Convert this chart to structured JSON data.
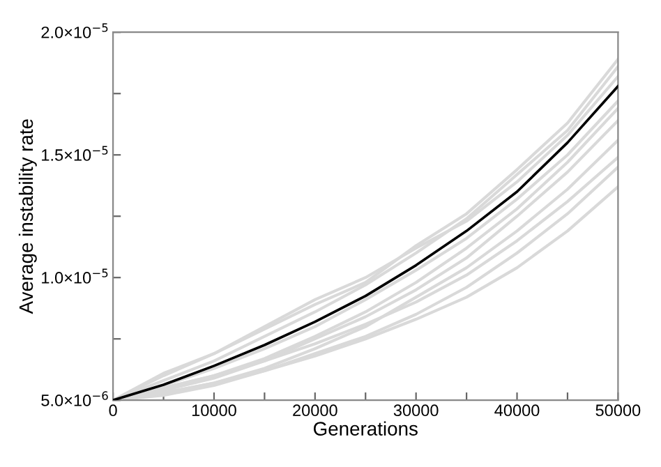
{
  "chart_data": {
    "type": "line",
    "xlabel": "Generations",
    "ylabel": "Average instability rate",
    "x": [
      0,
      5000,
      10000,
      15000,
      20000,
      25000,
      30000,
      35000,
      40000,
      45000,
      50000
    ],
    "series": [
      {
        "color": "#d9d9d9",
        "values": [
          5e-06,
          6.1e-06,
          6.9e-06,
          7.9e-06,
          8.9e-06,
          9.8e-06,
          1.13e-05,
          1.26e-05,
          1.44e-05,
          1.63e-05,
          1.89e-05
        ]
      },
      {
        "color": "#d9d9d9",
        "values": [
          5e-06,
          5.8e-06,
          6.6e-06,
          7.6e-06,
          8.6e-06,
          9.7e-06,
          1.1e-05,
          1.24e-05,
          1.42e-05,
          1.6e-05,
          1.86e-05
        ]
      },
      {
        "color": "#d9d9d9",
        "values": [
          5e-06,
          6e-06,
          6.9e-06,
          8e-06,
          9.1e-06,
          1e-05,
          1.12e-05,
          1.23e-05,
          1.39e-05,
          1.58e-05,
          1.82e-05
        ]
      },
      {
        "color": "#d9d9d9",
        "values": [
          5e-06,
          5.6e-06,
          6.3e-06,
          7.1e-06,
          8e-06,
          9.1e-06,
          1.03e-05,
          1.16e-05,
          1.32e-05,
          1.5e-05,
          1.72e-05
        ]
      },
      {
        "color": "#d9d9d9",
        "values": [
          5e-06,
          5.5e-06,
          6e-06,
          6.7e-06,
          7.6e-06,
          8.6e-06,
          9.8e-06,
          1.12e-05,
          1.28e-05,
          1.47e-05,
          1.69e-05
        ]
      },
      {
        "color": "#d9d9d9",
        "values": [
          5e-06,
          5.4e-06,
          5.9e-06,
          6.6e-06,
          7.5e-06,
          8.4e-06,
          9.5e-06,
          1.08e-05,
          1.25e-05,
          1.43e-05,
          1.64e-05
        ]
      },
      {
        "color": "#d9d9d9",
        "values": [
          5e-06,
          5.3e-06,
          5.7e-06,
          6.3e-06,
          7.1e-06,
          8e-06,
          9.2e-06,
          1.04e-05,
          1.19e-05,
          1.36e-05,
          1.56e-05
        ]
      },
      {
        "color": "#d9d9d9",
        "values": [
          5e-06,
          5.5e-06,
          6e-06,
          6.6e-06,
          7.3e-06,
          8.1e-06,
          9e-06,
          1.01e-05,
          1.15e-05,
          1.31e-05,
          1.49e-05
        ]
      },
      {
        "color": "#d9d9d9",
        "values": [
          5e-06,
          5.2e-06,
          5.6e-06,
          6.2e-06,
          6.9e-06,
          7.6e-06,
          8.5e-06,
          9.6e-06,
          1.1e-05,
          1.26e-05,
          1.45e-05
        ]
      },
      {
        "color": "#d9d9d9",
        "values": [
          5e-06,
          5.3e-06,
          5.7e-06,
          6.2e-06,
          6.8e-06,
          7.5e-06,
          8.3e-06,
          9.2e-06,
          1.04e-05,
          1.19e-05,
          1.37e-05
        ]
      },
      {
        "color": "#000000",
        "values": [
          5e-06,
          5.63e-06,
          6.4e-06,
          7.25e-06,
          8.2e-06,
          9.25e-06,
          1.05e-05,
          1.19e-05,
          1.35e-05,
          1.55e-05,
          1.78e-05
        ]
      }
    ],
    "xlim": [
      0,
      50000
    ],
    "xticks": [
      0,
      {
        "value": 5000,
        "label": null
      },
      10000,
      {
        "value": 15000,
        "label": null
      },
      20000,
      {
        "value": 25000,
        "label": null
      },
      30000,
      {
        "value": 35000,
        "label": null
      },
      40000,
      {
        "value": 45000,
        "label": null
      },
      50000
    ],
    "ylim": [
      5e-06,
      2e-05
    ],
    "yticks": [
      {
        "value": 5e-06,
        "label": "5.0×10$^{−6}$"
      },
      {
        "value": 7.5e-06,
        "label": null
      },
      {
        "value": 1e-05,
        "label": "1.0×10$^{−5}$"
      },
      {
        "value": 1.25e-05,
        "label": null
      },
      {
        "value": 1.5e-05,
        "label": "1.5×10$^{−5}$"
      },
      {
        "value": 1.75e-05,
        "label": null
      },
      {
        "value": 2e-05,
        "label": "2.0×10$^{−5}$"
      }
    ],
    "grid": false,
    "legend": false
  }
}
